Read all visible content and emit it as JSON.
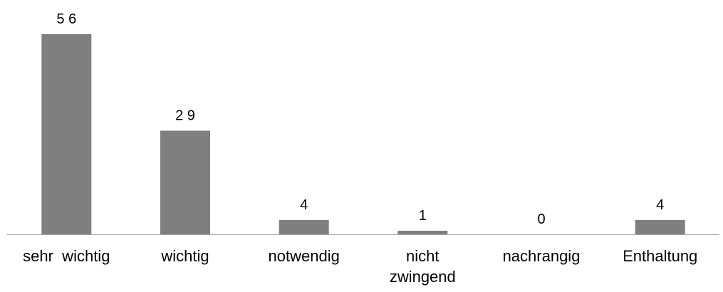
{
  "chart_data": {
    "type": "bar",
    "categories": [
      "sehr  wichtig",
      "wichtig",
      "notwendig",
      "nicht zwingend",
      "nachrangig",
      "Enthaltung"
    ],
    "category_label_lines": [
      [
        "sehr  wichtig"
      ],
      [
        "wichtig"
      ],
      [
        "notwendig"
      ],
      [
        "nicht",
        "zwingend"
      ],
      [
        "nachrangig"
      ],
      [
        "Enthaltung"
      ]
    ],
    "values": [
      56,
      29,
      4,
      1,
      0,
      4
    ],
    "data_labels": [
      "5 6",
      "2 9",
      "4",
      "1",
      "0",
      "4"
    ],
    "ylim": [
      0,
      56
    ],
    "grid": false,
    "legend": "none",
    "bar_color": "#7f7f7f",
    "axis_color": "#a6a6a6"
  }
}
